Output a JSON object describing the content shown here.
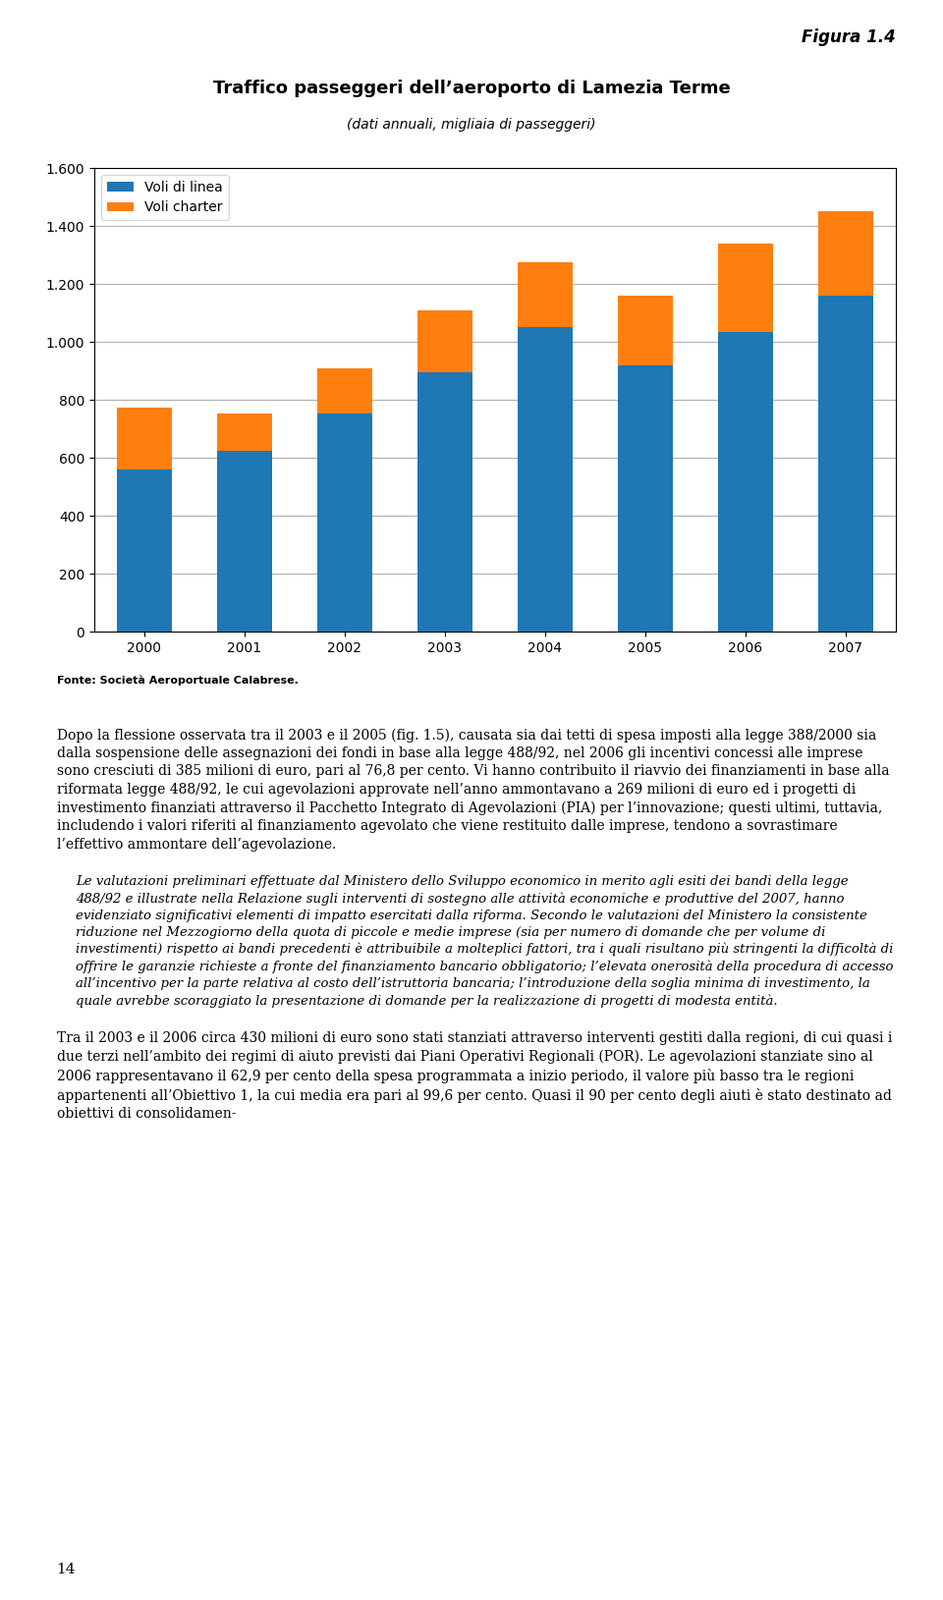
{
  "chart_data": {
    "type": "bar",
    "title": "Traffico passeggeri dell’aeroporto di Lamezia Terme",
    "subtitle": "(dati annuali, migliaia di passeggeri)",
    "categories": [
      "2000",
      "2001",
      "2002",
      "2003",
      "2004",
      "2005",
      "2006",
      "2007"
    ],
    "series": [
      {
        "name": "Voli di linea",
        "values": [
          560,
          625,
          755,
          895,
          1050,
          920,
          1035,
          1160
        ]
      },
      {
        "name": "Voli charter",
        "values": [
          215,
          130,
          155,
          215,
          225,
          240,
          305,
          290
        ]
      }
    ],
    "stacked": true,
    "ylim": [
      0,
      1600
    ],
    "yticks": [
      0,
      200,
      400,
      600,
      800,
      {
        "value": 1000,
        "label": "1.000"
      },
      {
        "value": 1200,
        "label": "1.200"
      },
      {
        "value": 1400,
        "label": "1.400"
      },
      {
        "value": 1600,
        "label": "1.600"
      }
    ],
    "grid": true,
    "legend": "upper left"
  },
  "figure_label": "Figura 1.4",
  "source": "Fonte: Società Aeroportuale Calabrese.",
  "paragraphs": [
    "Dopo la flessione osservata tra il 2003 e il 2005 (fig. 1.5), causata sia dai tetti di spesa imposti alla legge 388/2000 sia dalla sospensione delle assegnazioni dei fondi in base alla legge 488/92, nel 2006 gli incentivi concessi alle imprese sono cresciuti di 385 milioni di euro, pari al 76,8 per cento. Vi hanno contribuito il riavvio dei finanziamenti in base alla riformata legge 488/92, le cui agevolazioni approvate nell’anno ammontavano a 269 milioni di euro ed i progetti di investimento finanziati attraverso il Pacchetto Integrato di Agevolazioni (PIA) per l’innovazione;  questi ultimi, tuttavia, includendo i valori riferiti al finanziamento agevolato che viene restituito dalle imprese, tendono a sovrastimare l’effettivo ammontare dell’agevolazione.",
    "Le valutazioni preliminari effettuate dal Ministero dello Sviluppo economico in merito agli esiti dei bandi della legge 488/92 e illustrate nella Relazione sugli interventi di sostegno alle attività economiche e produttive del 2007, hanno evidenziato significativi elementi di impatto esercitati dalla riforma. Secondo le valutazioni del Ministero la consistente riduzione nel Mezzogiorno della quota di piccole e medie imprese (sia per numero di domande che per volume di investimenti) rispetto ai bandi precedenti è attribuibile a molteplici fattori, tra i quali risultano più stringenti la difficoltà di offrire le garanzie richieste a fronte del finanziamento bancario obbligatorio; l’elevata onerosità della procedura di accesso all’incentivo per la parte relativa al costo dell’istruttoria bancaria; l’introduzione della soglia minima di investimento, la quale avrebbe scoraggiato la presentazione di domande per la realizzazione di progetti di modesta entità.",
    "Tra il 2003 e il 2006 circa 430 milioni di euro sono stati stanziati attraverso interventi gestiti dalla regioni, di cui quasi i due terzi nell’ambito dei regimi di aiuto previsti dai Piani Operativi Regionali (POR). Le agevolazioni stanziate sino al 2006 rappresentavano il 62,9 per cento della spesa programmata a inizio periodo, il valore più basso tra le regioni appartenenti all’Obiettivo 1, la cui media era pari al 99,6 per cento.  Quasi il 90 per cento degli aiuti è stato destinato ad obiettivi di consolidamen-"
  ],
  "page_number": "14"
}
